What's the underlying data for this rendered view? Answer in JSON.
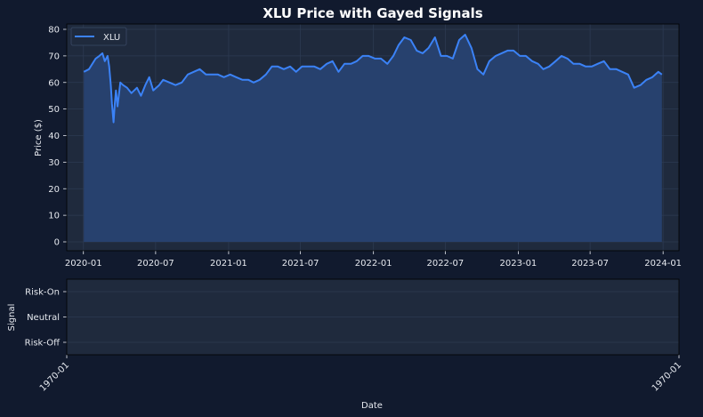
{
  "chart_data": [
    {
      "type": "area",
      "title": "XLU Price with Gayed Signals",
      "xlabel": "",
      "ylabel": "Price ($)",
      "ylim": [
        0,
        80
      ],
      "yticks": [
        0,
        10,
        20,
        30,
        40,
        50,
        60,
        70,
        80
      ],
      "xticks": [
        "2020-01",
        "2020-07",
        "2021-01",
        "2021-07",
        "2022-01",
        "2022-07",
        "2023-01",
        "2023-07",
        "2024-01"
      ],
      "xrange": [
        "2019-11-20",
        "2024-02-10"
      ],
      "grid": true,
      "legend": "top-left",
      "colors": {
        "line": "#3b82f6",
        "fill": "#27416e",
        "axes_bg": "#1f2a3d",
        "fig_bg": "#111a2e"
      },
      "series": [
        {
          "name": "XLU",
          "x": [
            "2020-01-02",
            "2020-01-15",
            "2020-02-01",
            "2020-02-10",
            "2020-02-18",
            "2020-02-24",
            "2020-03-02",
            "2020-03-06",
            "2020-03-10",
            "2020-03-13",
            "2020-03-17",
            "2020-03-20",
            "2020-03-23",
            "2020-03-27",
            "2020-04-03",
            "2020-04-10",
            "2020-04-20",
            "2020-05-01",
            "2020-05-15",
            "2020-05-25",
            "2020-06-05",
            "2020-06-15",
            "2020-06-25",
            "2020-07-10",
            "2020-07-20",
            "2020-08-05",
            "2020-08-20",
            "2020-09-05",
            "2020-09-20",
            "2020-10-05",
            "2020-10-20",
            "2020-11-05",
            "2020-11-20",
            "2020-12-05",
            "2020-12-20",
            "2021-01-05",
            "2021-01-20",
            "2021-02-05",
            "2021-02-20",
            "2021-03-05",
            "2021-03-20",
            "2021-04-05",
            "2021-04-20",
            "2021-05-05",
            "2021-05-20",
            "2021-06-05",
            "2021-06-20",
            "2021-07-05",
            "2021-07-20",
            "2021-08-05",
            "2021-08-20",
            "2021-09-05",
            "2021-09-20",
            "2021-10-05",
            "2021-10-20",
            "2021-11-05",
            "2021-11-20",
            "2021-12-05",
            "2021-12-20",
            "2022-01-05",
            "2022-01-20",
            "2022-02-05",
            "2022-02-20",
            "2022-03-05",
            "2022-03-20",
            "2022-04-05",
            "2022-04-20",
            "2022-05-05",
            "2022-05-20",
            "2022-06-05",
            "2022-06-20",
            "2022-07-05",
            "2022-07-20",
            "2022-08-05",
            "2022-08-20",
            "2022-09-05",
            "2022-09-20",
            "2022-10-05",
            "2022-10-20",
            "2022-11-05",
            "2022-11-20",
            "2022-12-05",
            "2022-12-20",
            "2023-01-05",
            "2023-01-20",
            "2023-02-05",
            "2023-02-20",
            "2023-03-05",
            "2023-03-20",
            "2023-04-05",
            "2023-04-20",
            "2023-05-05",
            "2023-05-20",
            "2023-06-05",
            "2023-06-20",
            "2023-07-05",
            "2023-07-20",
            "2023-08-05",
            "2023-08-20",
            "2023-09-05",
            "2023-09-20",
            "2023-10-05",
            "2023-10-20",
            "2023-11-05",
            "2023-11-20",
            "2023-12-05",
            "2023-12-20",
            "2023-12-29"
          ],
          "values": [
            64,
            65,
            69,
            70,
            71,
            68,
            70,
            66,
            59,
            52,
            45,
            52,
            57,
            51,
            60,
            59,
            58,
            56,
            58,
            55,
            59,
            62,
            57,
            59,
            61,
            60,
            59,
            60,
            63,
            64,
            65,
            63,
            63,
            63,
            62,
            63,
            62,
            61,
            61,
            60,
            61,
            63,
            66,
            66,
            65,
            66,
            64,
            66,
            66,
            66,
            65,
            67,
            68,
            64,
            67,
            67,
            68,
            70,
            70,
            69,
            69,
            67,
            70,
            74,
            77,
            76,
            72,
            71,
            73,
            77,
            70,
            70,
            69,
            76,
            78,
            73,
            65,
            63,
            68,
            70,
            71,
            72,
            72,
            70,
            70,
            68,
            67,
            65,
            66,
            68,
            70,
            69,
            67,
            67,
            66,
            66,
            67,
            68,
            65,
            65,
            64,
            63,
            58,
            59,
            61,
            62,
            64,
            63
          ]
        }
      ]
    },
    {
      "type": "line",
      "title": "",
      "xlabel": "Date",
      "ylabel": "Signal",
      "yticks": [
        "Risk-Off",
        "Neutral",
        "Risk-On"
      ],
      "xticks": [
        "1970-01",
        "1970-01"
      ],
      "grid": true,
      "series": []
    }
  ]
}
